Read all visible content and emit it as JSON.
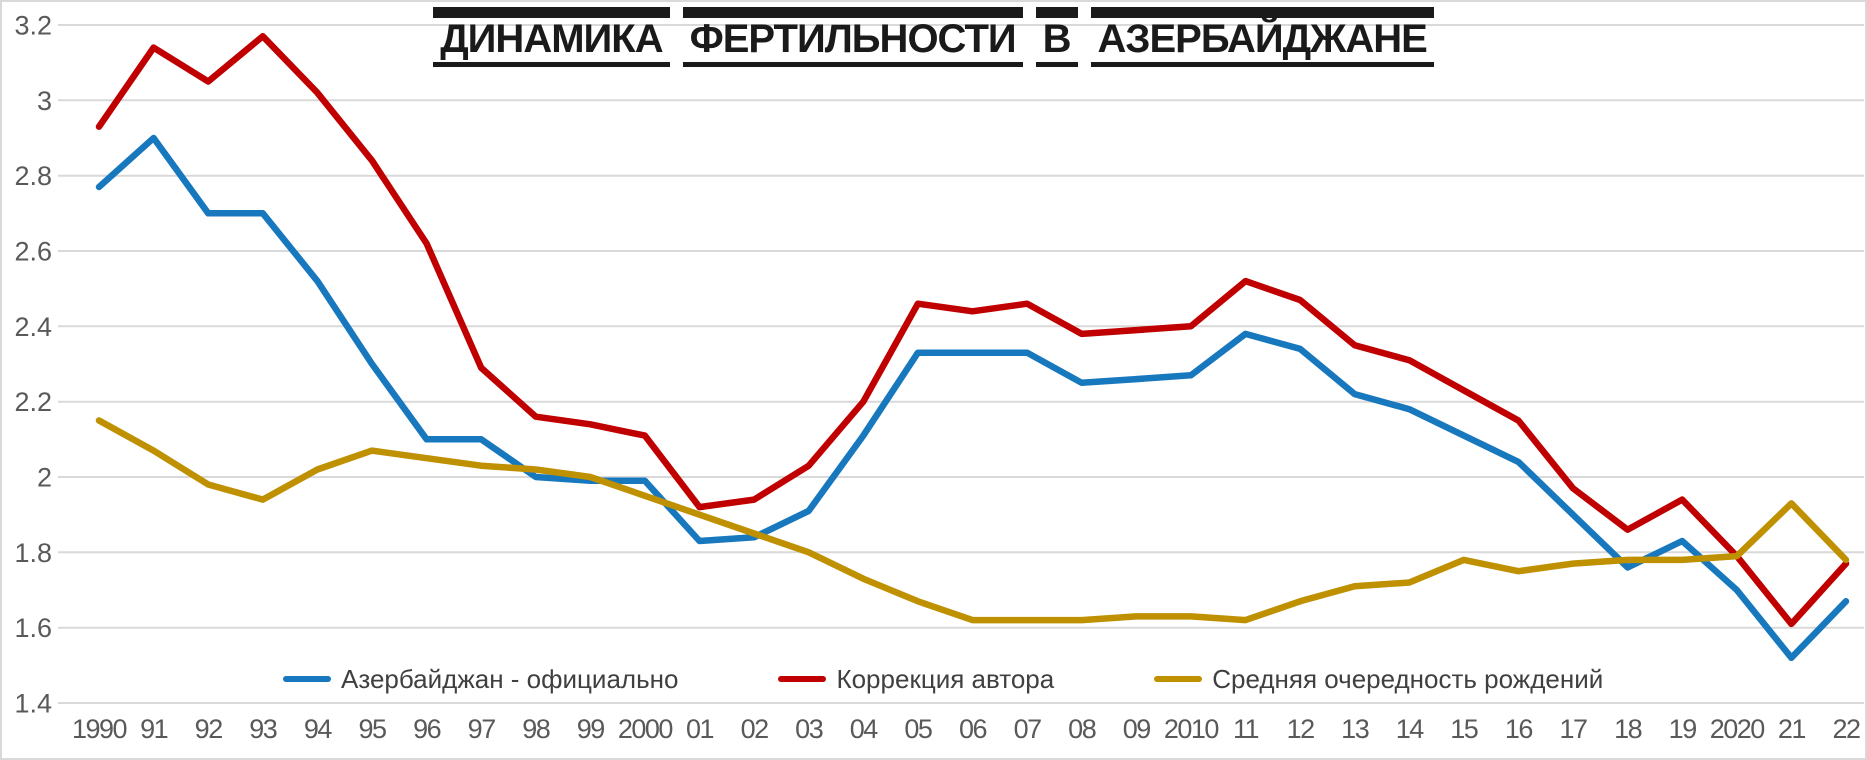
{
  "title": {
    "words": [
      "ДИНАМИКА",
      "ФЕРТИЛЬНОСТИ",
      "В",
      "АЗЕРБАЙДЖАНЕ"
    ]
  },
  "legend": {
    "items": [
      {
        "label": "Азербайджан - официально",
        "color": "#1878BE"
      },
      {
        "label": "Коррекция автора",
        "color": "#C00000"
      },
      {
        "label": "Средняя очередность рождений",
        "color": "#BF9000"
      }
    ]
  },
  "axes": {
    "y_ticks": [
      "3.2",
      "3",
      "2.8",
      "2.6",
      "2.4",
      "2.2",
      "2",
      "1.8",
      "1.6",
      "1.4"
    ]
  },
  "colors": {
    "grid": "#D9D9D9",
    "axis_text": "#595959",
    "legend_text": "#404040",
    "title": "#1A1A1A",
    "background": "#FFFFFF",
    "border": "#D9D9D9"
  },
  "chart_data": {
    "type": "line",
    "title": "ДИНАМИКА ФЕРТИЛЬНОСТИ В АЗЕРБАЙДЖАНЕ",
    "xlabel": "",
    "ylabel": "",
    "ylim": [
      1.4,
      3.2
    ],
    "y_tick_step": 0.2,
    "grid": true,
    "legend_position": "bottom",
    "categories": [
      "1990",
      "91",
      "92",
      "93",
      "94",
      "95",
      "96",
      "97",
      "98",
      "99",
      "2000",
      "01",
      "02",
      "03",
      "04",
      "05",
      "06",
      "07",
      "08",
      "09",
      "2010",
      "11",
      "12",
      "13",
      "14",
      "15",
      "16",
      "17",
      "18",
      "19",
      "2020",
      "21",
      "22"
    ],
    "series": [
      {
        "name": "Азербайджан - официально",
        "color": "#1878BE",
        "values": [
          2.77,
          2.9,
          2.7,
          2.7,
          2.52,
          2.3,
          2.1,
          2.1,
          2.0,
          1.99,
          1.99,
          1.83,
          1.84,
          1.91,
          2.11,
          2.33,
          2.33,
          2.33,
          2.25,
          2.26,
          2.27,
          2.38,
          2.34,
          2.22,
          2.18,
          2.11,
          2.04,
          1.9,
          1.76,
          1.83,
          1.7,
          1.52,
          1.67
        ]
      },
      {
        "name": "Коррекция автора",
        "color": "#C00000",
        "values": [
          2.93,
          3.14,
          3.05,
          3.17,
          3.02,
          2.84,
          2.62,
          2.29,
          2.16,
          2.14,
          2.11,
          1.92,
          1.94,
          2.03,
          2.2,
          2.46,
          2.44,
          2.46,
          2.38,
          2.39,
          2.4,
          2.52,
          2.47,
          2.35,
          2.31,
          2.23,
          2.15,
          1.97,
          1.86,
          1.94,
          1.79,
          1.61,
          1.77
        ]
      },
      {
        "name": "Средняя очередность рождений",
        "color": "#BF9000",
        "values": [
          2.15,
          2.07,
          1.98,
          1.94,
          2.02,
          2.07,
          2.05,
          2.03,
          2.02,
          2.0,
          1.95,
          1.9,
          1.85,
          1.8,
          1.73,
          1.67,
          1.62,
          1.62,
          1.62,
          1.63,
          1.63,
          1.62,
          1.67,
          1.71,
          1.72,
          1.78,
          1.75,
          1.77,
          1.78,
          1.78,
          1.79,
          1.93,
          1.78
        ]
      }
    ]
  }
}
